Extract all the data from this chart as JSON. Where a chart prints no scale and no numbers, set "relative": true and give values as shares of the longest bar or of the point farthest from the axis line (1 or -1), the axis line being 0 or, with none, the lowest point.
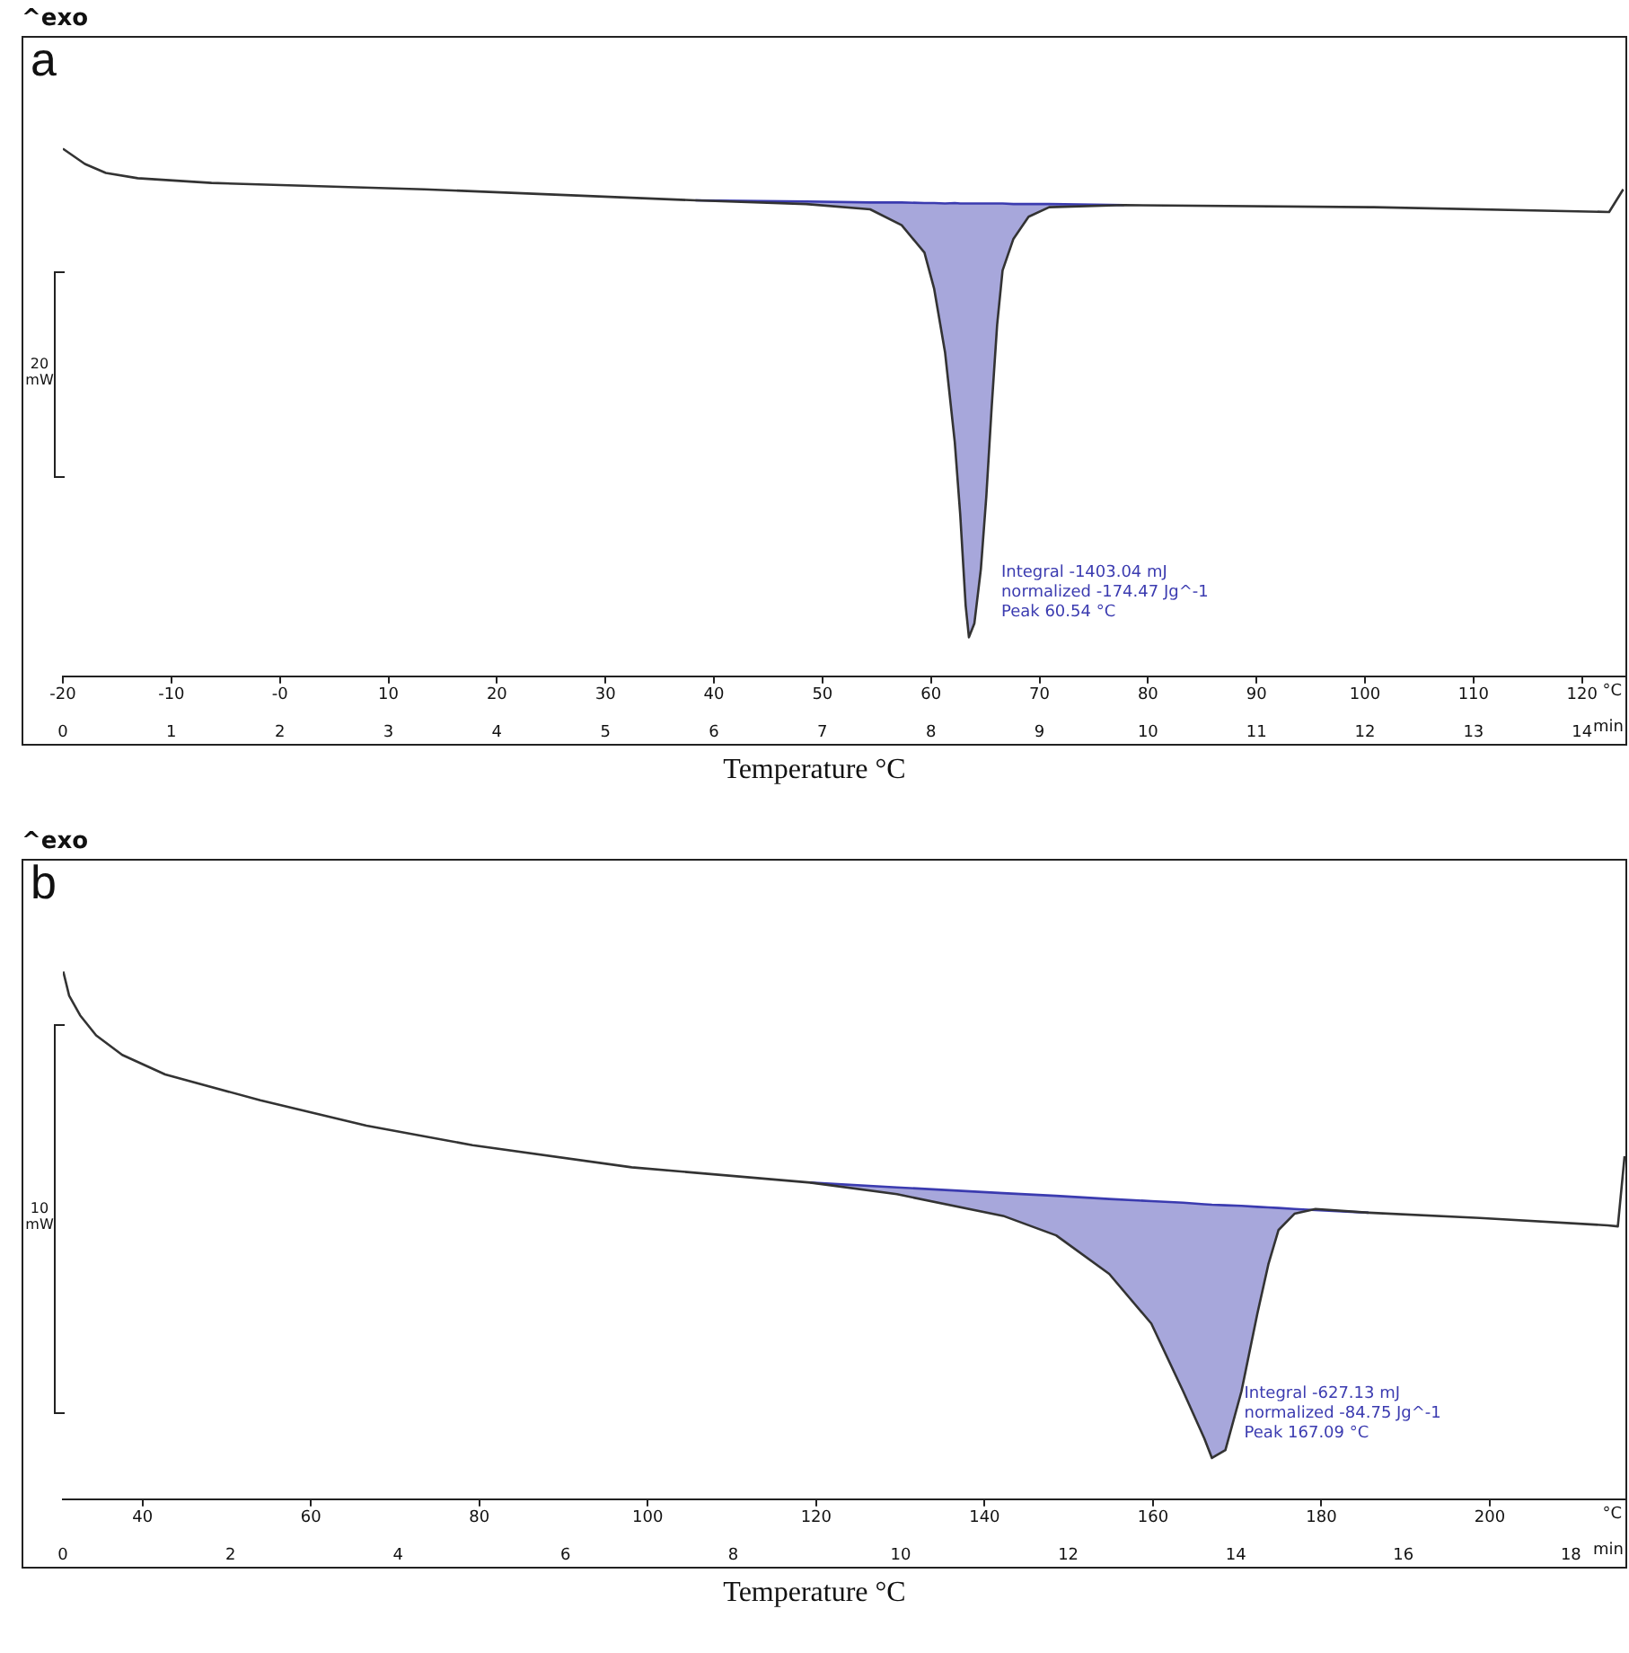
{
  "chart_data": [
    {
      "type": "line",
      "relative": true,
      "xlabel": "Temperature °C",
      "xlim": [
        -20,
        124
      ],
      "xticks": [
        -20,
        -10,
        {
          "value": 0,
          "label": "-0"
        },
        10,
        20,
        30,
        40,
        50,
        60,
        70,
        80,
        90,
        100,
        110,
        120
      ],
      "x2lim": [
        0,
        14.4
      ],
      "x2ticks": [
        0,
        1,
        2,
        3,
        4,
        5,
        6,
        7,
        8,
        9,
        10,
        11,
        12,
        13,
        14
      ],
      "annotations": [
        "^exo",
        "a",
        "20 mW",
        "°C",
        "min",
        "Integral -1403.04 mJ",
        "normalized -174.47 Jg^-1",
        "Peak 60.54 °C"
      ],
      "series": [
        {
          "color": "#333333",
          "x": [
            -20,
            -17.97,
            -16.04,
            -13.1,
            -6.3,
            13.3,
            38.3,
            48.5,
            54.4,
            57.3,
            59.4,
            60.3,
            61.3,
            62.2,
            62.7,
            63.2,
            63.5,
            64.0,
            64.6,
            65.1,
            65.6,
            66.1,
            66.6,
            67.6,
            69.0,
            70.9,
            77.8,
            100.8,
            122.5,
            123.8
          ],
          "values": [
            1,
            0.971,
            0.954,
            0.944,
            0.935,
            0.923,
            0.902,
            0.895,
            0.885,
            0.855,
            0.803,
            0.734,
            0.614,
            0.443,
            0.306,
            0.134,
            0.074,
            0.1,
            0.203,
            0.34,
            0.511,
            0.666,
            0.769,
            0.829,
            0.871,
            0.889,
            0.893,
            0.889,
            0.88,
            0.923
          ]
        },
        {
          "color": "#3b3bb0",
          "x": [
            38.3,
            48.5,
            54.4,
            57.3,
            59.4,
            60.3,
            61.3,
            62.2,
            62.7,
            63.2,
            63.5,
            64.0,
            64.6,
            65.1,
            65.6,
            66.1,
            66.6,
            67.6,
            69.0,
            70.9,
            77.8
          ],
          "values": [
            0.902,
            0.9,
            0.898,
            0.898,
            0.897,
            0.897,
            0.896,
            0.897,
            0.896,
            0.896,
            0.896,
            0.896,
            0.896,
            0.896,
            0.896,
            0.896,
            0.896,
            0.895,
            0.895,
            0.895,
            0.893
          ],
          "lower": [
            0.902,
            0.895,
            0.885,
            0.855,
            0.803,
            0.734,
            0.614,
            0.443,
            0.306,
            0.134,
            0.074,
            0.1,
            0.203,
            0.34,
            0.511,
            0.666,
            0.769,
            0.829,
            0.871,
            0.889,
            0.893
          ],
          "upper": [
            0.902,
            0.9,
            0.898,
            0.898,
            0.897,
            0.897,
            0.896,
            0.897,
            0.896,
            0.896,
            0.896,
            0.896,
            0.896,
            0.896,
            0.896,
            0.896,
            0.896,
            0.895,
            0.895,
            0.895,
            0.893
          ]
        }
      ]
    },
    {
      "type": "line",
      "relative": true,
      "xlabel": "Temperature °C",
      "xlim": [
        30.55,
        216.1
      ],
      "xticks": [
        40,
        60,
        80,
        100,
        120,
        140,
        160,
        180,
        200
      ],
      "x2lim": [
        0,
        18.65
      ],
      "x2ticks": [
        0,
        2,
        4,
        6,
        8,
        10,
        12,
        14,
        16,
        18
      ],
      "annotations": [
        "^exo",
        "b",
        "10 mW",
        "°C",
        "min",
        "Integral -627.13 mJ",
        "normalized -84.75 Jg^-1",
        "Peak 167.09 °C"
      ],
      "series": [
        {
          "color": "#333333",
          "x": [
            30.6,
            31.3,
            32.6,
            34.5,
            37.6,
            42.7,
            54,
            66.6,
            79.2,
            98.1,
            119.3,
            129.6,
            142.2,
            148.5,
            154.8,
            159.8,
            163.6,
            166.1,
            167,
            168.6,
            170.5,
            172.4,
            173.7,
            174.9,
            176.8,
            179.3,
            185.6,
            198.8,
            214,
            215.2,
            216
          ],
          "values": [
            1,
            0.954,
            0.917,
            0.879,
            0.842,
            0.805,
            0.756,
            0.708,
            0.671,
            0.629,
            0.6,
            0.578,
            0.537,
            0.5,
            0.427,
            0.333,
            0.204,
            0.115,
            0.078,
            0.093,
            0.204,
            0.352,
            0.445,
            0.51,
            0.541,
            0.55,
            0.543,
            0.533,
            0.519,
            0.517,
            0.65
          ]
        },
        {
          "color": "#3b3bb0",
          "x": [
            119.3,
            129.6,
            142.2,
            148.5,
            154.8,
            159.8,
            163.6,
            166.1,
            167,
            168.6,
            170.5,
            172.4,
            173.7,
            174.9,
            176.8,
            179.3,
            185.6
          ],
          "values": [
            0.6,
            0.591,
            0.58,
            0.575,
            0.569,
            0.565,
            0.562,
            0.559,
            0.558,
            0.557,
            0.556,
            0.554,
            0.553,
            0.552,
            0.55,
            0.548,
            0.543
          ],
          "lower": [
            0.6,
            0.578,
            0.537,
            0.5,
            0.427,
            0.333,
            0.204,
            0.115,
            0.078,
            0.093,
            0.204,
            0.352,
            0.445,
            0.51,
            0.541,
            0.548,
            0.543
          ],
          "upper": [
            0.6,
            0.591,
            0.58,
            0.575,
            0.569,
            0.565,
            0.562,
            0.559,
            0.558,
            0.557,
            0.556,
            0.554,
            0.553,
            0.552,
            0.55,
            0.548,
            0.543
          ]
        }
      ]
    }
  ]
}
